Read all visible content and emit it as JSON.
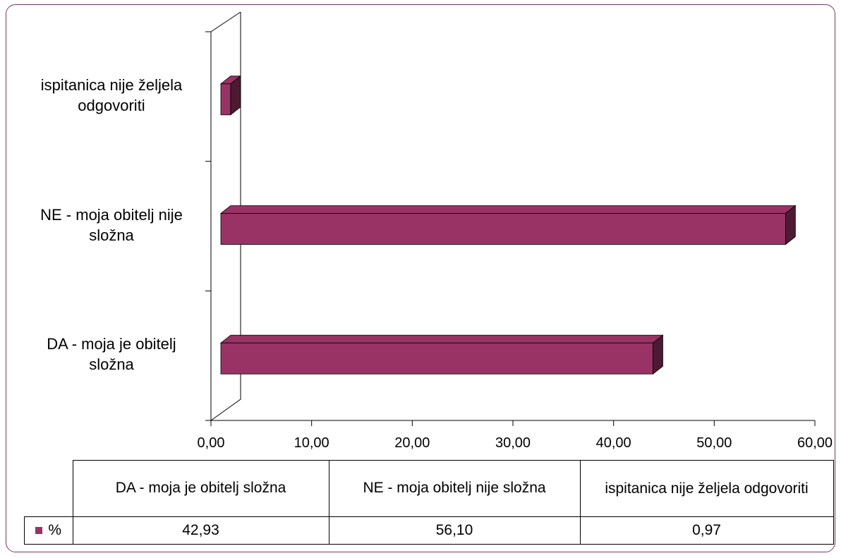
{
  "chart_data": {
    "type": "bar",
    "orientation": "horizontal",
    "style": "3d",
    "categories": [
      "DA - moja je obitelj složna",
      "NE - moja obitelj nije složna",
      "ispitanica nije željela odgovoriti"
    ],
    "category_lines": [
      [
        "DA - moja je obitelj",
        "složna"
      ],
      [
        "NE - moja obitelj nije",
        "složna"
      ],
      [
        "ispitanica nije željela",
        "odgovoriti"
      ]
    ],
    "series": [
      {
        "name": "%",
        "values": [
          42.93,
          56.1,
          0.97
        ],
        "color": "#993366"
      }
    ],
    "xlim": [
      0,
      60
    ],
    "xticks": [
      "0,00",
      "10,00",
      "20,00",
      "30,00",
      "40,00",
      "50,00",
      "60,00"
    ],
    "grid": false,
    "legend": "data-table-below"
  },
  "table": {
    "headers": [
      "DA - moja je obitelj složna",
      "NE - moja obitelj nije složna",
      "ispitanica nije željela odgovoriti"
    ],
    "row_label": "%",
    "values": [
      "42,93",
      "56,10",
      "0,97"
    ]
  },
  "colors": {
    "bar": "#993366",
    "bar_top": "#993366",
    "bar_side": "#4d1a33",
    "frame": "#7a3a5e"
  }
}
